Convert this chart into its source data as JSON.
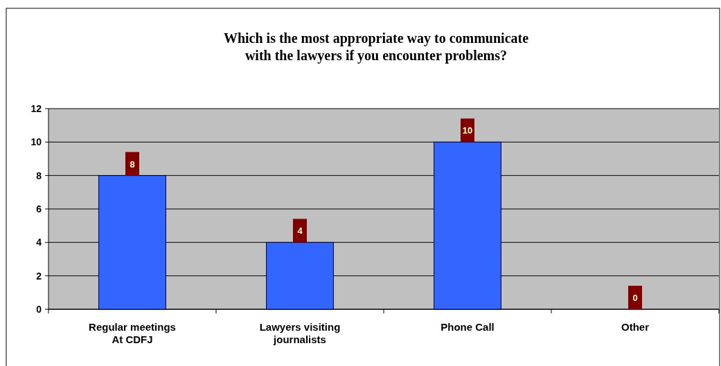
{
  "chart_data": {
    "type": "bar",
    "title": "Which is the most appropriate way to communicate\nwith the lawyers if you encounter problems?",
    "categories": [
      "Regular meetings\nAt CDFJ",
      "Lawyers visiting\njournalists",
      "Phone Call",
      "Other"
    ],
    "values": [
      8,
      4,
      10,
      0
    ],
    "color": "#3366ff",
    "ylim": [
      0,
      12
    ],
    "yticks": [
      0,
      2,
      4,
      6,
      8,
      10,
      12
    ],
    "grid": "y",
    "data_labels": true
  }
}
